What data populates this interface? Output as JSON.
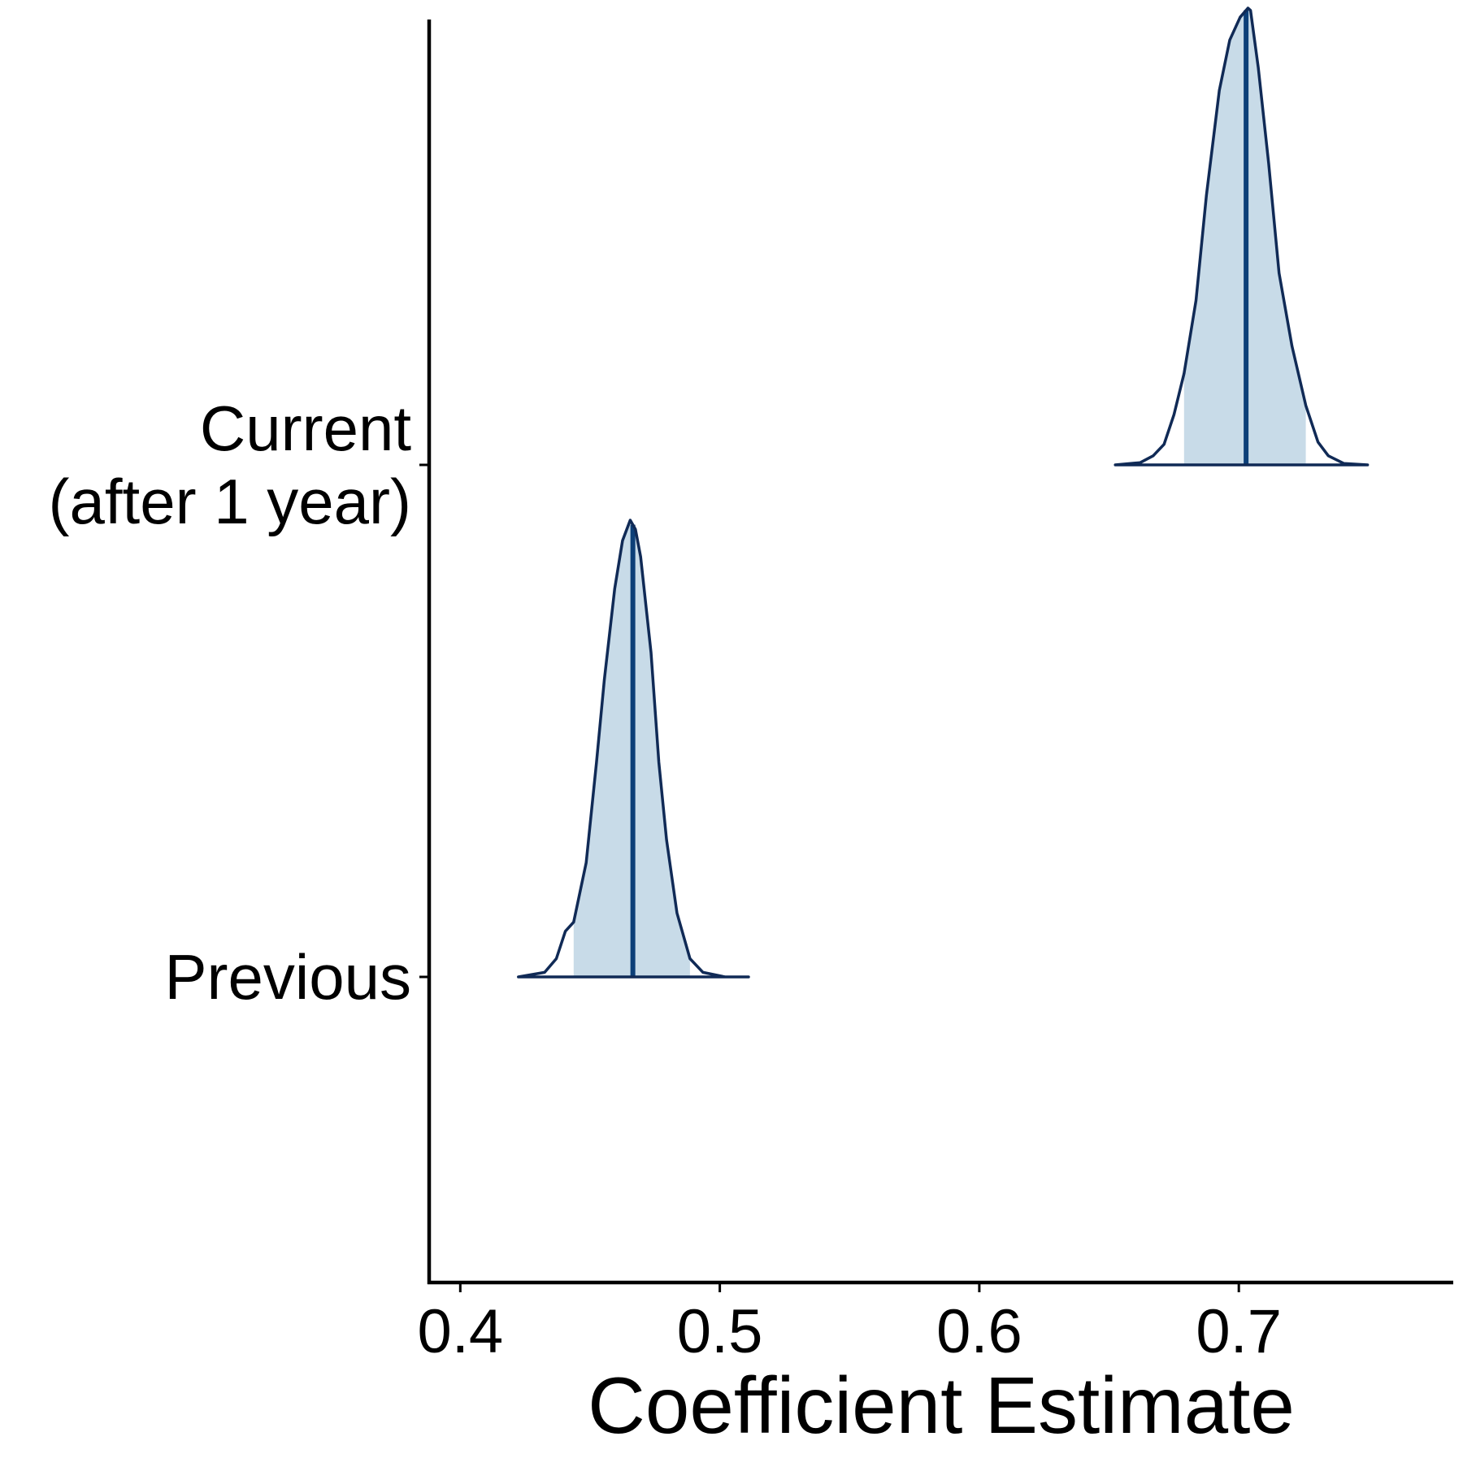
{
  "chart_data": {
    "type": "density_ridges",
    "title": "",
    "xlabel": "Coefficient Estimate",
    "ylabel": "",
    "xlim": [
      0.388,
      0.782
    ],
    "x_ticks": [
      0.4,
      0.5,
      0.6,
      0.7
    ],
    "x_tick_labels": [
      "0.4",
      "0.5",
      "0.6",
      "0.7"
    ],
    "categories": [
      {
        "id": "previous",
        "lines": [
          "Previous"
        ]
      },
      {
        "id": "current",
        "lines": [
          "Current",
          "(after 1 year)"
        ]
      }
    ],
    "series": [
      {
        "category": "previous",
        "median": 0.4665,
        "interval": [
          0.4437,
          0.4885
        ],
        "range": [
          0.4224,
          0.5111
        ],
        "density": [
          [
            0.4224,
            0.0
          ],
          [
            0.4325,
            0.01
          ],
          [
            0.437,
            0.04
          ],
          [
            0.4405,
            0.1
          ],
          [
            0.4437,
            0.12
          ],
          [
            0.4485,
            0.25
          ],
          [
            0.4525,
            0.47
          ],
          [
            0.4555,
            0.65
          ],
          [
            0.4595,
            0.85
          ],
          [
            0.4625,
            0.955
          ],
          [
            0.4655,
            1.0
          ],
          [
            0.4675,
            0.98
          ],
          [
            0.4695,
            0.92
          ],
          [
            0.4735,
            0.71
          ],
          [
            0.4765,
            0.47
          ],
          [
            0.4795,
            0.3
          ],
          [
            0.4835,
            0.14
          ],
          [
            0.4885,
            0.04
          ],
          [
            0.4935,
            0.01
          ],
          [
            0.502,
            0.0
          ],
          [
            0.5111,
            0.0
          ]
        ]
      },
      {
        "category": "current",
        "median": 0.7028,
        "interval": [
          0.6789,
          0.7258
        ],
        "range": [
          0.6524,
          0.7496
        ],
        "density": [
          [
            0.6524,
            0.0
          ],
          [
            0.662,
            0.005
          ],
          [
            0.667,
            0.02
          ],
          [
            0.6712,
            0.045
          ],
          [
            0.675,
            0.11
          ],
          [
            0.6789,
            0.2
          ],
          [
            0.6835,
            0.36
          ],
          [
            0.6875,
            0.59
          ],
          [
            0.6925,
            0.82
          ],
          [
            0.6965,
            0.93
          ],
          [
            0.7005,
            0.98
          ],
          [
            0.7035,
            1.0
          ],
          [
            0.7045,
            0.995
          ],
          [
            0.7075,
            0.87
          ],
          [
            0.7115,
            0.66
          ],
          [
            0.7155,
            0.42
          ],
          [
            0.7205,
            0.26
          ],
          [
            0.7258,
            0.13
          ],
          [
            0.7305,
            0.05
          ],
          [
            0.7345,
            0.02
          ],
          [
            0.7405,
            0.003
          ],
          [
            0.7496,
            0.0
          ]
        ]
      }
    ],
    "colors": {
      "fill": "#c8dbe8",
      "outline": "#102a56",
      "median_line": "#0c3f78",
      "axis": "#000000"
    },
    "grid": false,
    "legend": "none"
  }
}
